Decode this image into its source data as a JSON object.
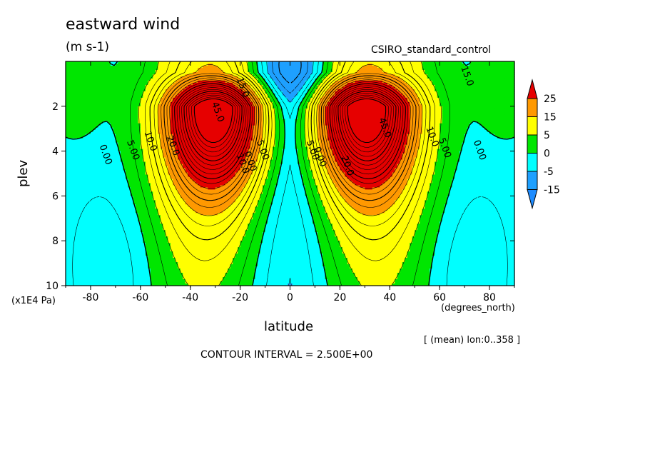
{
  "header": {
    "title": "eastward wind",
    "units": "(m s-1)",
    "model": "CSIRO_standard_control"
  },
  "footer": {
    "lon_note": "[ (mean) lon:0..358 ]",
    "contour_interval": "CONTOUR INTERVAL = 2.500E+00"
  },
  "colors": {
    "le_neg15": "#1e8cff",
    "neg15_neg5": "#1ea0ff",
    "neg5_0": "#00ffff",
    "0_5": "#00e600",
    "5_15": "#ffff00",
    "15_25": "#ff9900",
    "ge_25": "#e60000"
  },
  "chart_data": {
    "type": "contour",
    "title": "eastward wind",
    "xlabel": "latitude",
    "ylabel": "plev",
    "x_units": "(degrees_north)",
    "y_units": "(x1E4 Pa)",
    "xlim": [
      -90,
      90
    ],
    "ylim": [
      10,
      0
    ],
    "x_ticks": [
      -80,
      -60,
      -40,
      -20,
      0,
      20,
      40,
      60,
      80
    ],
    "y_ticks": [
      2,
      4,
      6,
      8,
      10
    ],
    "contour_interval": 2.5,
    "colorbar": {
      "levels": [
        -15,
        -5,
        0,
        5,
        15,
        25
      ],
      "labels": [
        "25",
        "15",
        "5",
        "0",
        "-5",
        "-15"
      ]
    },
    "features": {
      "jet_cores": [
        {
          "lat": -30,
          "plev": 2,
          "value": 45
        },
        {
          "lat": 30,
          "plev": 2,
          "value": 45
        }
      ],
      "easterly_minima": [
        {
          "lat": -65,
          "plev": 9.2,
          "value": -5
        },
        {
          "lat": 65,
          "plev": 9.1,
          "value": -5
        }
      ]
    },
    "contour_labels": [
      {
        "text": "0.00",
        "lat": -75,
        "plev": 4.2
      },
      {
        "text": "5.00",
        "lat": -64,
        "plev": 4.0
      },
      {
        "text": "10.0",
        "lat": -57,
        "plev": 3.6
      },
      {
        "text": "20.0",
        "lat": -48,
        "plev": 3.8
      },
      {
        "text": "45.0",
        "lat": -30,
        "plev": 2.3
      },
      {
        "text": "15.0",
        "lat": -20,
        "plev": 1.2
      },
      {
        "text": "10.0",
        "lat": -20,
        "plev": 4.6
      },
      {
        "text": "0.00",
        "lat": -17,
        "plev": 4.5
      },
      {
        "text": "5.00",
        "lat": -12,
        "plev": 4.0
      },
      {
        "text": "5.00",
        "lat": 8,
        "plev": 4.0
      },
      {
        "text": "0.00",
        "lat": 11,
        "plev": 4.3
      },
      {
        "text": "20.0",
        "lat": 22,
        "plev": 4.7
      },
      {
        "text": "45.0",
        "lat": 37,
        "plev": 3.0
      },
      {
        "text": "10.0",
        "lat": 56,
        "plev": 3.4
      },
      {
        "text": "5.00",
        "lat": 61,
        "plev": 3.9
      },
      {
        "text": "0.00",
        "lat": 75,
        "plev": 4.0
      },
      {
        "text": "15.0",
        "lat": 70,
        "plev": 0.7
      }
    ]
  }
}
